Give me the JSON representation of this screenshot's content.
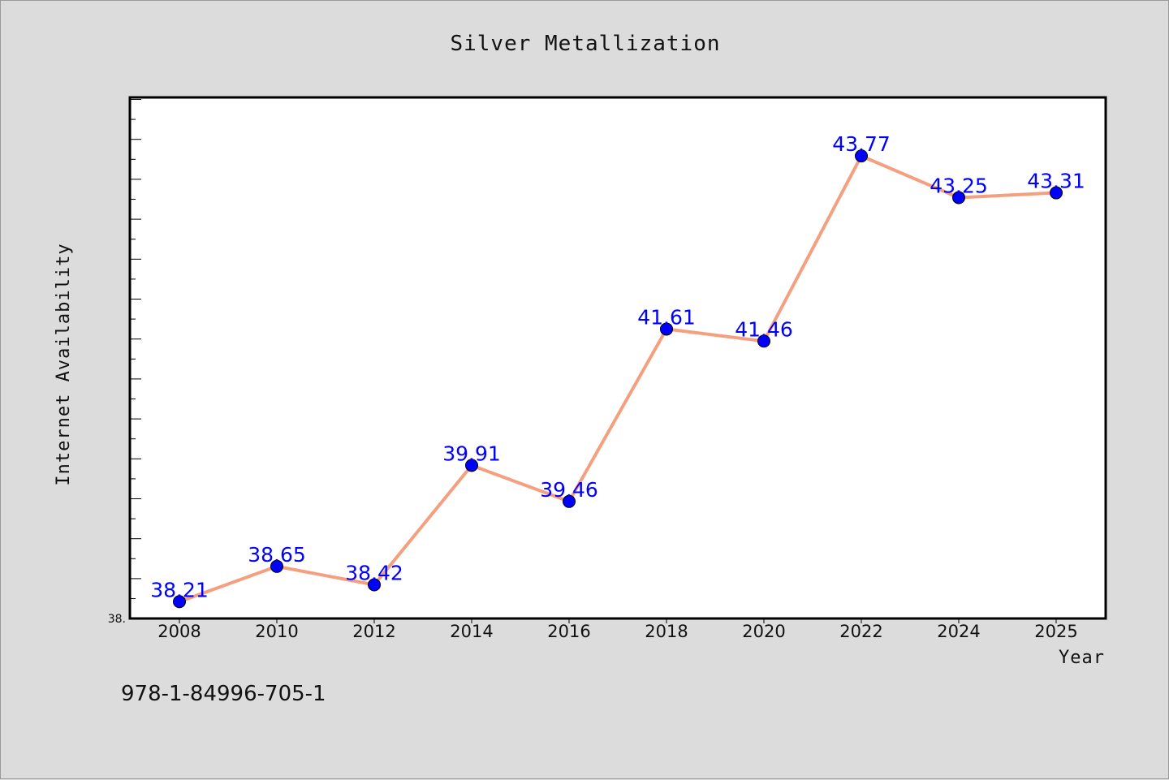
{
  "chart_data": {
    "type": "line",
    "title": "Silver Metallization",
    "xlabel": "Year",
    "ylabel": "Internet Availability",
    "categories": [
      "2008",
      "2010",
      "2012",
      "2014",
      "2016",
      "2018",
      "2020",
      "2022",
      "2024",
      "2025"
    ],
    "series": [
      {
        "values": [
          38.21,
          38.65,
          38.42,
          39.91,
          39.46,
          41.61,
          41.46,
          43.77,
          43.25,
          43.31
        ],
        "line_color": "#f4a080",
        "marker_color": "#0000ff",
        "label_color": "#0000ff"
      }
    ],
    "ylim": [
      38.0,
      44.5
    ],
    "y_tick_labels": [
      "38."
    ],
    "grid": false,
    "legend": "none"
  },
  "footer_text": "978-1-84996-705-1",
  "colors": {
    "background": "#dcdcdc",
    "plot_background": "#ffffff",
    "line": "#f4a080",
    "marker": "#0000ff"
  }
}
